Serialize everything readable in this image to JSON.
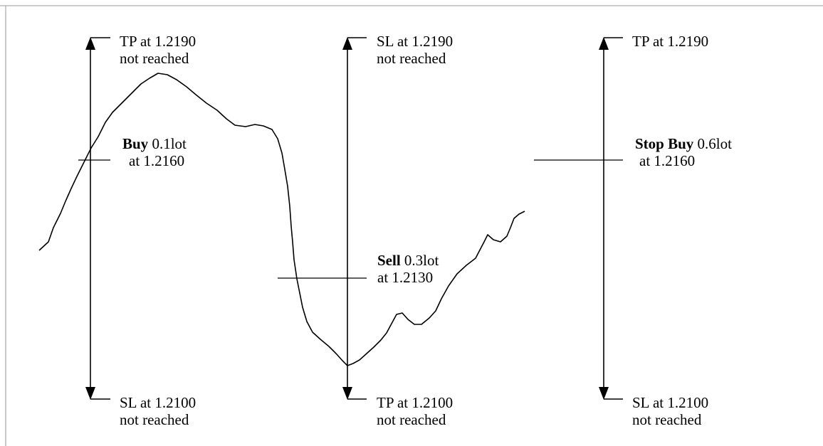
{
  "colors": {
    "ink": "#000000",
    "frame": "#999999",
    "background": "#ffffff"
  },
  "stages": [
    {
      "id": "buy",
      "top_label": {
        "line1": "TP at 1.2190",
        "line2": "not reached"
      },
      "entry_label": {
        "action": "Buy",
        "size": " 0.1lot",
        "line2": "at 1.2160"
      },
      "bottom_label": {
        "line1": "SL at 1.2100",
        "line2": "not reached"
      }
    },
    {
      "id": "sell",
      "top_label": {
        "line1": "SL at 1.2190",
        "line2": "not reached"
      },
      "entry_label": {
        "action": "Sell",
        "size": " 0.3lot",
        "line2": "at 1.2130"
      },
      "bottom_label": {
        "line1": "TP at 1.2100",
        "line2": "not reached"
      }
    },
    {
      "id": "stop-buy",
      "top_label": {
        "line1": "TP at 1.2190",
        "line2": ""
      },
      "entry_label": {
        "action": "Stop Buy",
        "size": " 0.6lot",
        "line2": "at 1.2160"
      },
      "bottom_label": {
        "line1": "SL at 1.2100",
        "line2": "not reached"
      }
    }
  ]
}
